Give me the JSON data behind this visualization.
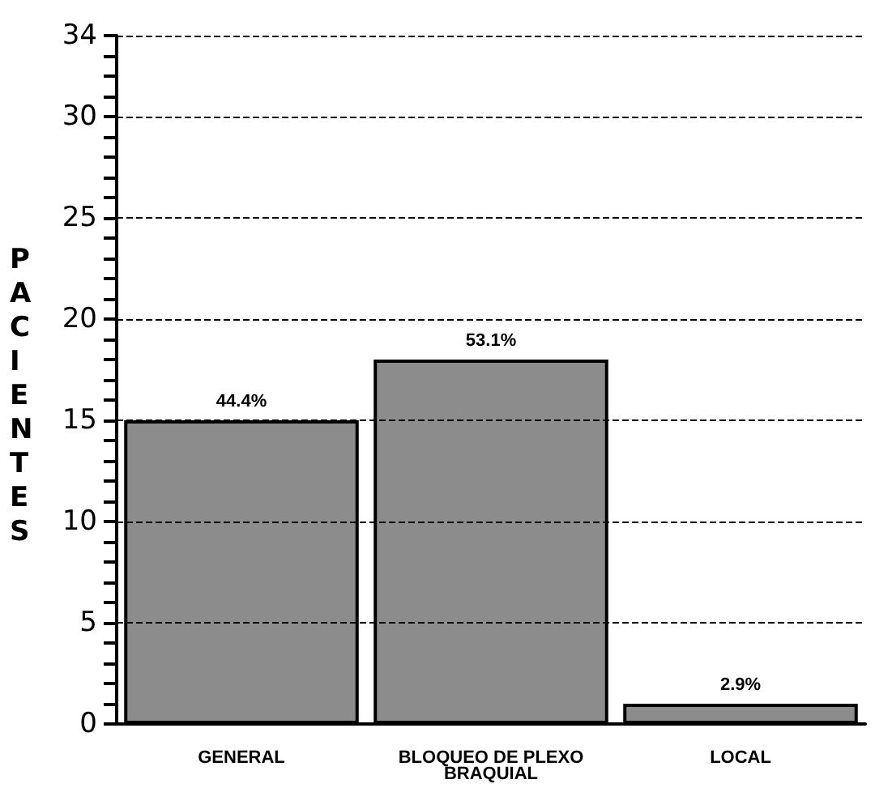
{
  "chart_data": {
    "type": "bar",
    "ylabel": "PACIENTES",
    "categories": [
      "GENERAL",
      "BLOQUEO DE PLEXO\nBRAQUIAL",
      "LOCAL"
    ],
    "values": [
      15,
      18,
      1
    ],
    "annotations": [
      {
        "text": "44.4%",
        "x": "GENERAL",
        "y": 15
      },
      {
        "text": "53.1%",
        "x": "BLOQUEO DE PLEXO\nBRAQUIAL",
        "y": 18
      },
      {
        "text": "2.9%",
        "x": "LOCAL",
        "y": 1
      }
    ],
    "color": "#8c8c8c",
    "ylim": [
      0,
      34
    ],
    "yticks": [
      0,
      5,
      10,
      15,
      20,
      25,
      30,
      34
    ],
    "grid": "y"
  }
}
